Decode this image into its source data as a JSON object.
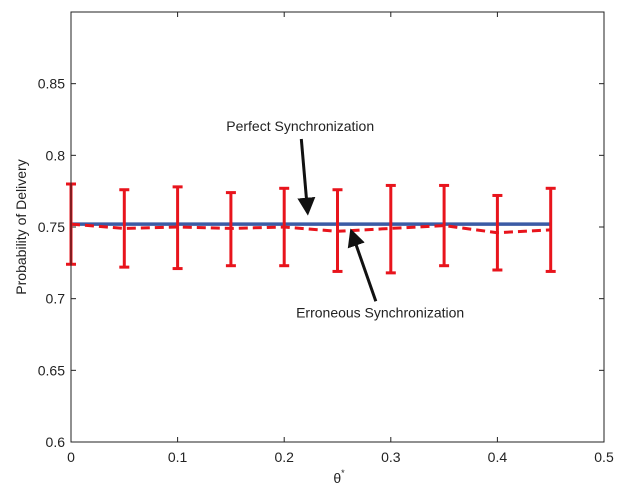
{
  "chart_data": {
    "type": "line",
    "title": "",
    "xlabel": "θ",
    "xlabel_superscript": "*",
    "ylabel": "Probability of Delivery",
    "xlim": [
      0,
      0.5
    ],
    "ylim": [
      0.6,
      0.9
    ],
    "x_ticks": [
      "0",
      "0.1",
      "0.2",
      "0.3",
      "0.4",
      "0.5"
    ],
    "y_ticks": [
      "0.6",
      "0.65",
      "0.7",
      "0.75",
      "0.8",
      "0.85"
    ],
    "grid": false,
    "legend": "none",
    "series": [
      {
        "name": "Perfect Synchronization",
        "style": "solid",
        "color": "#3b5ba5",
        "x": [
          0,
          0.05,
          0.1,
          0.15,
          0.2,
          0.25,
          0.3,
          0.35,
          0.4,
          0.45
        ],
        "y": [
          0.752,
          0.752,
          0.752,
          0.752,
          0.752,
          0.752,
          0.752,
          0.752,
          0.752,
          0.752
        ]
      },
      {
        "name": "Erroneous Synchronization",
        "style": "dashed",
        "color": "#e8141c",
        "x": [
          0,
          0.05,
          0.1,
          0.15,
          0.2,
          0.25,
          0.3,
          0.35,
          0.4,
          0.45
        ],
        "y": [
          0.752,
          0.749,
          0.75,
          0.749,
          0.75,
          0.747,
          0.749,
          0.751,
          0.746,
          0.748
        ],
        "y_low": [
          0.724,
          0.722,
          0.721,
          0.723,
          0.723,
          0.719,
          0.718,
          0.723,
          0.72,
          0.719
        ],
        "y_high": [
          0.78,
          0.776,
          0.778,
          0.774,
          0.777,
          0.776,
          0.779,
          0.779,
          0.772,
          0.777
        ]
      }
    ],
    "annotations": [
      {
        "text": "Perfect Synchronization",
        "x": 0.215,
        "y": 0.817,
        "arrow_to_x": 0.222,
        "arrow_to_y": 0.76
      },
      {
        "text": "Erroneous Synchronization",
        "x": 0.29,
        "y": 0.687,
        "arrow_to_x": 0.263,
        "arrow_to_y": 0.747
      }
    ]
  }
}
